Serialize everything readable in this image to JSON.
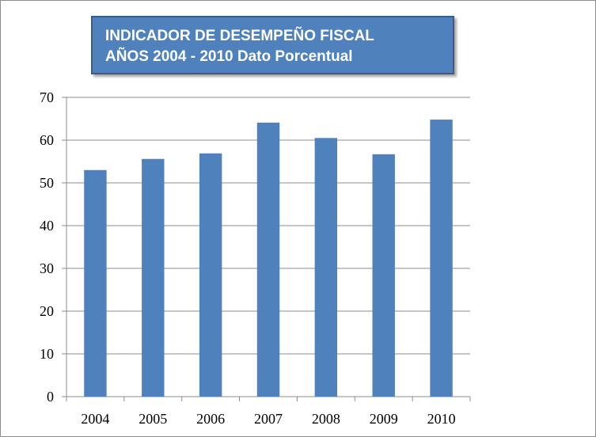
{
  "chart_data": {
    "type": "bar",
    "title": "INDICADOR DE DESEMPEÑO FISCAL",
    "subtitle": "AÑOS 2004 - 2010 Dato Porcentual",
    "categories": [
      "2004",
      "2005",
      "2006",
      "2007",
      "2008",
      "2009",
      "2010"
    ],
    "values": [
      53,
      55.6,
      56.9,
      64.1,
      60.5,
      56.7,
      64.8
    ],
    "ylim": [
      0,
      70
    ],
    "yticks": [
      "0",
      "10",
      "20",
      "30",
      "40",
      "50",
      "60",
      "70"
    ],
    "grid": true,
    "legend": "none",
    "bar_color": "#4f81bd"
  }
}
